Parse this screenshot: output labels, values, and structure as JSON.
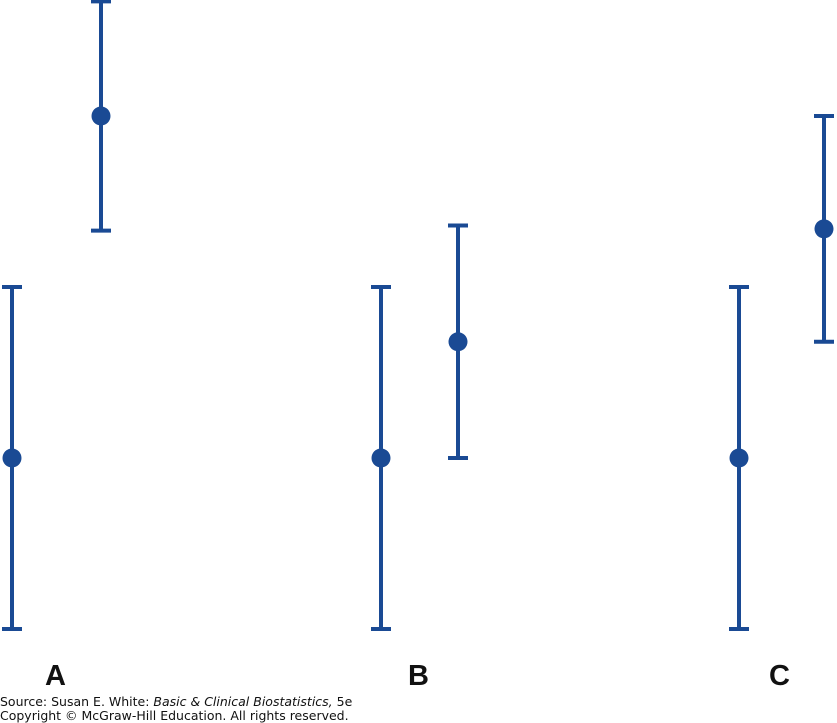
{
  "chart_data": {
    "type": "scatter",
    "description_of_marks": "point estimates with error bars (confidence intervals)",
    "color": "#1a4a94",
    "panels": [
      {
        "label": "A",
        "intervals": [
          {
            "estimate": 0.0,
            "lower": -1.0,
            "upper": 1.0
          },
          {
            "estimate": 2.0,
            "lower": 1.33,
            "upper": 2.67
          }
        ]
      },
      {
        "label": "B",
        "intervals": [
          {
            "estimate": 0.0,
            "lower": -1.0,
            "upper": 1.0
          },
          {
            "estimate": 0.68,
            "lower": 0.0,
            "upper": 1.36
          }
        ]
      },
      {
        "label": "C",
        "intervals": [
          {
            "estimate": 0.0,
            "lower": -1.0,
            "upper": 1.0
          },
          {
            "estimate": 1.34,
            "lower": 0.68,
            "upper": 2.0
          }
        ]
      }
    ]
  },
  "footer": {
    "source_prefix": "Source: Susan E. White: ",
    "source_title": "Basic & Clinical Biostatistics,",
    "source_suffix": " 5e",
    "copyright": "Copyright © McGraw-Hill Education. All rights reserved."
  }
}
